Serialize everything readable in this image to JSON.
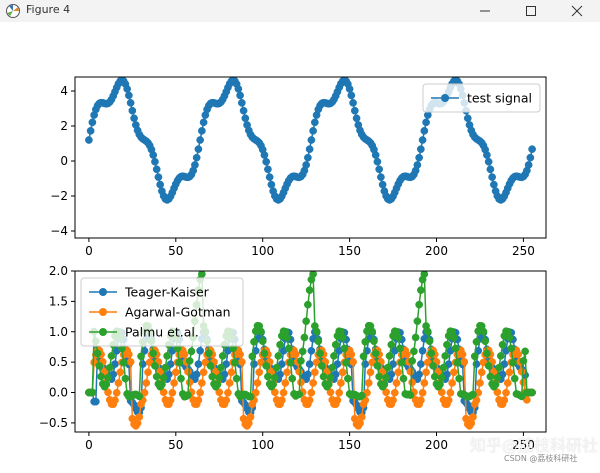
{
  "window": {
    "title": "Figure 4",
    "icon": "matplotlib-icon",
    "buttons": [
      "minimize-icon",
      "maximize-icon",
      "close-icon"
    ]
  },
  "watermark": {
    "main": "知乎@荔枝科研社",
    "sub": "CSDN @荔枝科研社"
  },
  "colors": {
    "test_signal": "#1f77b4",
    "teager_kaiser": "#1f77b4",
    "agarwal_gotman": "#ff7f0e",
    "palmu": "#2ca02c"
  },
  "chart_data": [
    {
      "type": "line",
      "marker": "circle",
      "x_range": [
        0,
        255
      ],
      "xlim": [
        -8,
        263
      ],
      "ylim": [
        -4.4,
        4.8
      ],
      "xticks": [
        0,
        50,
        100,
        150,
        200,
        250
      ],
      "yticks": [
        -4,
        -2,
        0,
        2,
        4
      ],
      "xticklabels": [
        "0",
        "50",
        "100",
        "150",
        "200",
        "250"
      ],
      "yticklabels": [
        "−4",
        "−2",
        "0",
        "2",
        "4"
      ],
      "series": [
        {
          "name": "test signal",
          "formula": "3*sin(2*pi*x/64)+0.6*sin(2*pi*x/16)+1.2",
          "color": "#1f77b4"
        }
      ],
      "legend": {
        "location": "upper right",
        "entries": [
          "test signal"
        ]
      }
    },
    {
      "type": "line",
      "marker": "circle",
      "x_range": [
        0,
        255
      ],
      "xlim": [
        -8,
        263
      ],
      "ylim": [
        -0.65,
        2.0
      ],
      "xticks": [
        0,
        50,
        100,
        150,
        200,
        250
      ],
      "yticks": [
        -0.5,
        0.0,
        0.5,
        1.0,
        1.5,
        2.0
      ],
      "xticklabels": [
        "0",
        "50",
        "100",
        "150",
        "200",
        "250"
      ],
      "yticklabels": [
        "−0.5",
        "0.0",
        "0.5",
        "1.0",
        "1.5",
        "2.0"
      ],
      "series": [
        {
          "name": "Teager-Kaiser",
          "color": "#1f77b4"
        },
        {
          "name": "Agarwal-Gotman",
          "color": "#ff7f0e"
        },
        {
          "name": "Palmu et.al.",
          "color": "#2ca02c"
        }
      ],
      "legend": {
        "location": "upper left",
        "entries": [
          "Teager-Kaiser",
          "Agarwal-Gotman",
          "Palmu et.al."
        ]
      }
    }
  ]
}
